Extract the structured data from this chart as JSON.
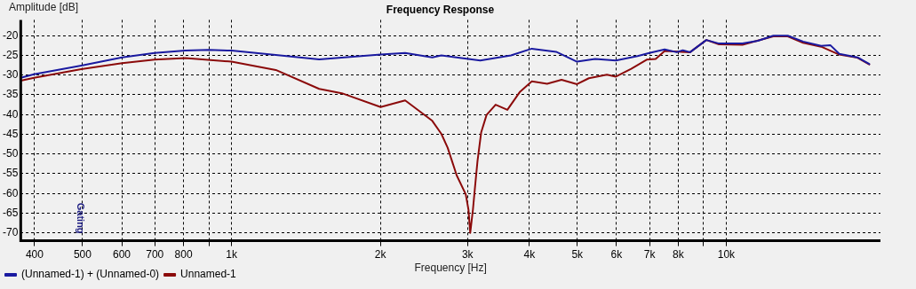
{
  "chart_data": {
    "type": "line",
    "title": "Frequency Response",
    "xlabel": "Frequency [Hz]",
    "ylabel": "Amplitude [dB]",
    "log": "x",
    "grid": true,
    "legend": "bottom left",
    "marker": "none",
    "line_style": "solid",
    "xlim": [
      375,
      20500
    ],
    "ylim": [
      -72,
      -16
    ],
    "xticks": [
      400,
      500,
      600,
      700,
      800,
      {
        "value": 900,
        "label": null
      },
      {
        "value": 1000,
        "label": "1k"
      },
      {
        "value": 2000,
        "label": "2k"
      },
      {
        "value": 3000,
        "label": "3k"
      },
      {
        "value": 4000,
        "label": "4k"
      },
      {
        "value": 5000,
        "label": "5k"
      },
      {
        "value": 6000,
        "label": "6k"
      },
      {
        "value": 7000,
        "label": "7k"
      },
      {
        "value": 8000,
        "label": "8k"
      },
      {
        "value": 9000,
        "label": null
      },
      {
        "value": 10000,
        "label": "10k"
      }
    ],
    "yticks": [
      -20,
      -25,
      -30,
      -35,
      -40,
      -45,
      -50,
      -55,
      -60,
      -65,
      -70
    ],
    "annotations": [
      "Gating"
    ],
    "series": [
      {
        "name": "(Unnamed-1) + (Unnamed-0)",
        "color": "#1a1aa0",
        "x": [
          375,
          399,
          497,
          601,
          699,
          807,
          900,
          1000,
          1229,
          1504,
          2002,
          2244,
          2546,
          2656,
          3183,
          3672,
          4046,
          4531,
          4993,
          5433,
          5984,
          6620,
          6992,
          7510,
          7935,
          8171,
          8452,
          9117,
          9669,
          10788,
          11588,
          12450,
          13317,
          14302,
          15557,
          16229,
          16925,
          18416,
          19455
        ],
        "values": [
          -30.7,
          -29.8,
          -27.6,
          -25.5,
          -24.4,
          -23.8,
          -23.6,
          -23.8,
          -24.9,
          -26.0,
          -24.8,
          -24.4,
          -25.5,
          -25.0,
          -26.3,
          -25.0,
          -23.3,
          -24.1,
          -26.6,
          -25.9,
          -26.3,
          -25.2,
          -24.4,
          -23.5,
          -24.2,
          -23.7,
          -24.2,
          -21.1,
          -22.0,
          -22.0,
          -21.3,
          -20.0,
          -20.0,
          -21.5,
          -22.6,
          -22.4,
          -24.6,
          -25.5,
          -27.2
        ]
      },
      {
        "name": "Unnamed-1",
        "color": "#8b0a0a",
        "x": [
          375,
          399,
          497,
          601,
          699,
          807,
          1000,
          1229,
          1504,
          1671,
          2002,
          2244,
          2546,
          2656,
          2735,
          2852,
          2975,
          3013,
          3038,
          3077,
          3103,
          3143,
          3197,
          3278,
          3419,
          3611,
          3831,
          4046,
          4345,
          4647,
          4993,
          5276,
          5739,
          5984,
          6427,
          6905,
          7201,
          7510,
          8452,
          9117,
          9669,
          10788,
          12450,
          13317,
          14302,
          15557,
          16925,
          18416,
          19455
        ],
        "values": [
          -31.4,
          -30.7,
          -28.5,
          -27.0,
          -26.1,
          -25.7,
          -26.6,
          -28.7,
          -33.5,
          -34.6,
          -38.1,
          -36.4,
          -41.6,
          -44.9,
          -48.4,
          -55.4,
          -60.2,
          -64.1,
          -70.0,
          -64.0,
          -59.0,
          -51.7,
          -44.5,
          -40.1,
          -37.5,
          -38.8,
          -34.2,
          -31.6,
          -32.2,
          -31.2,
          -32.3,
          -30.8,
          -29.9,
          -30.4,
          -28.4,
          -26.1,
          -25.9,
          -23.9,
          -24.2,
          -21.1,
          -22.2,
          -22.3,
          -20.2,
          -20.2,
          -21.8,
          -22.8,
          -24.8,
          -25.6,
          -27.3
        ]
      }
    ]
  }
}
